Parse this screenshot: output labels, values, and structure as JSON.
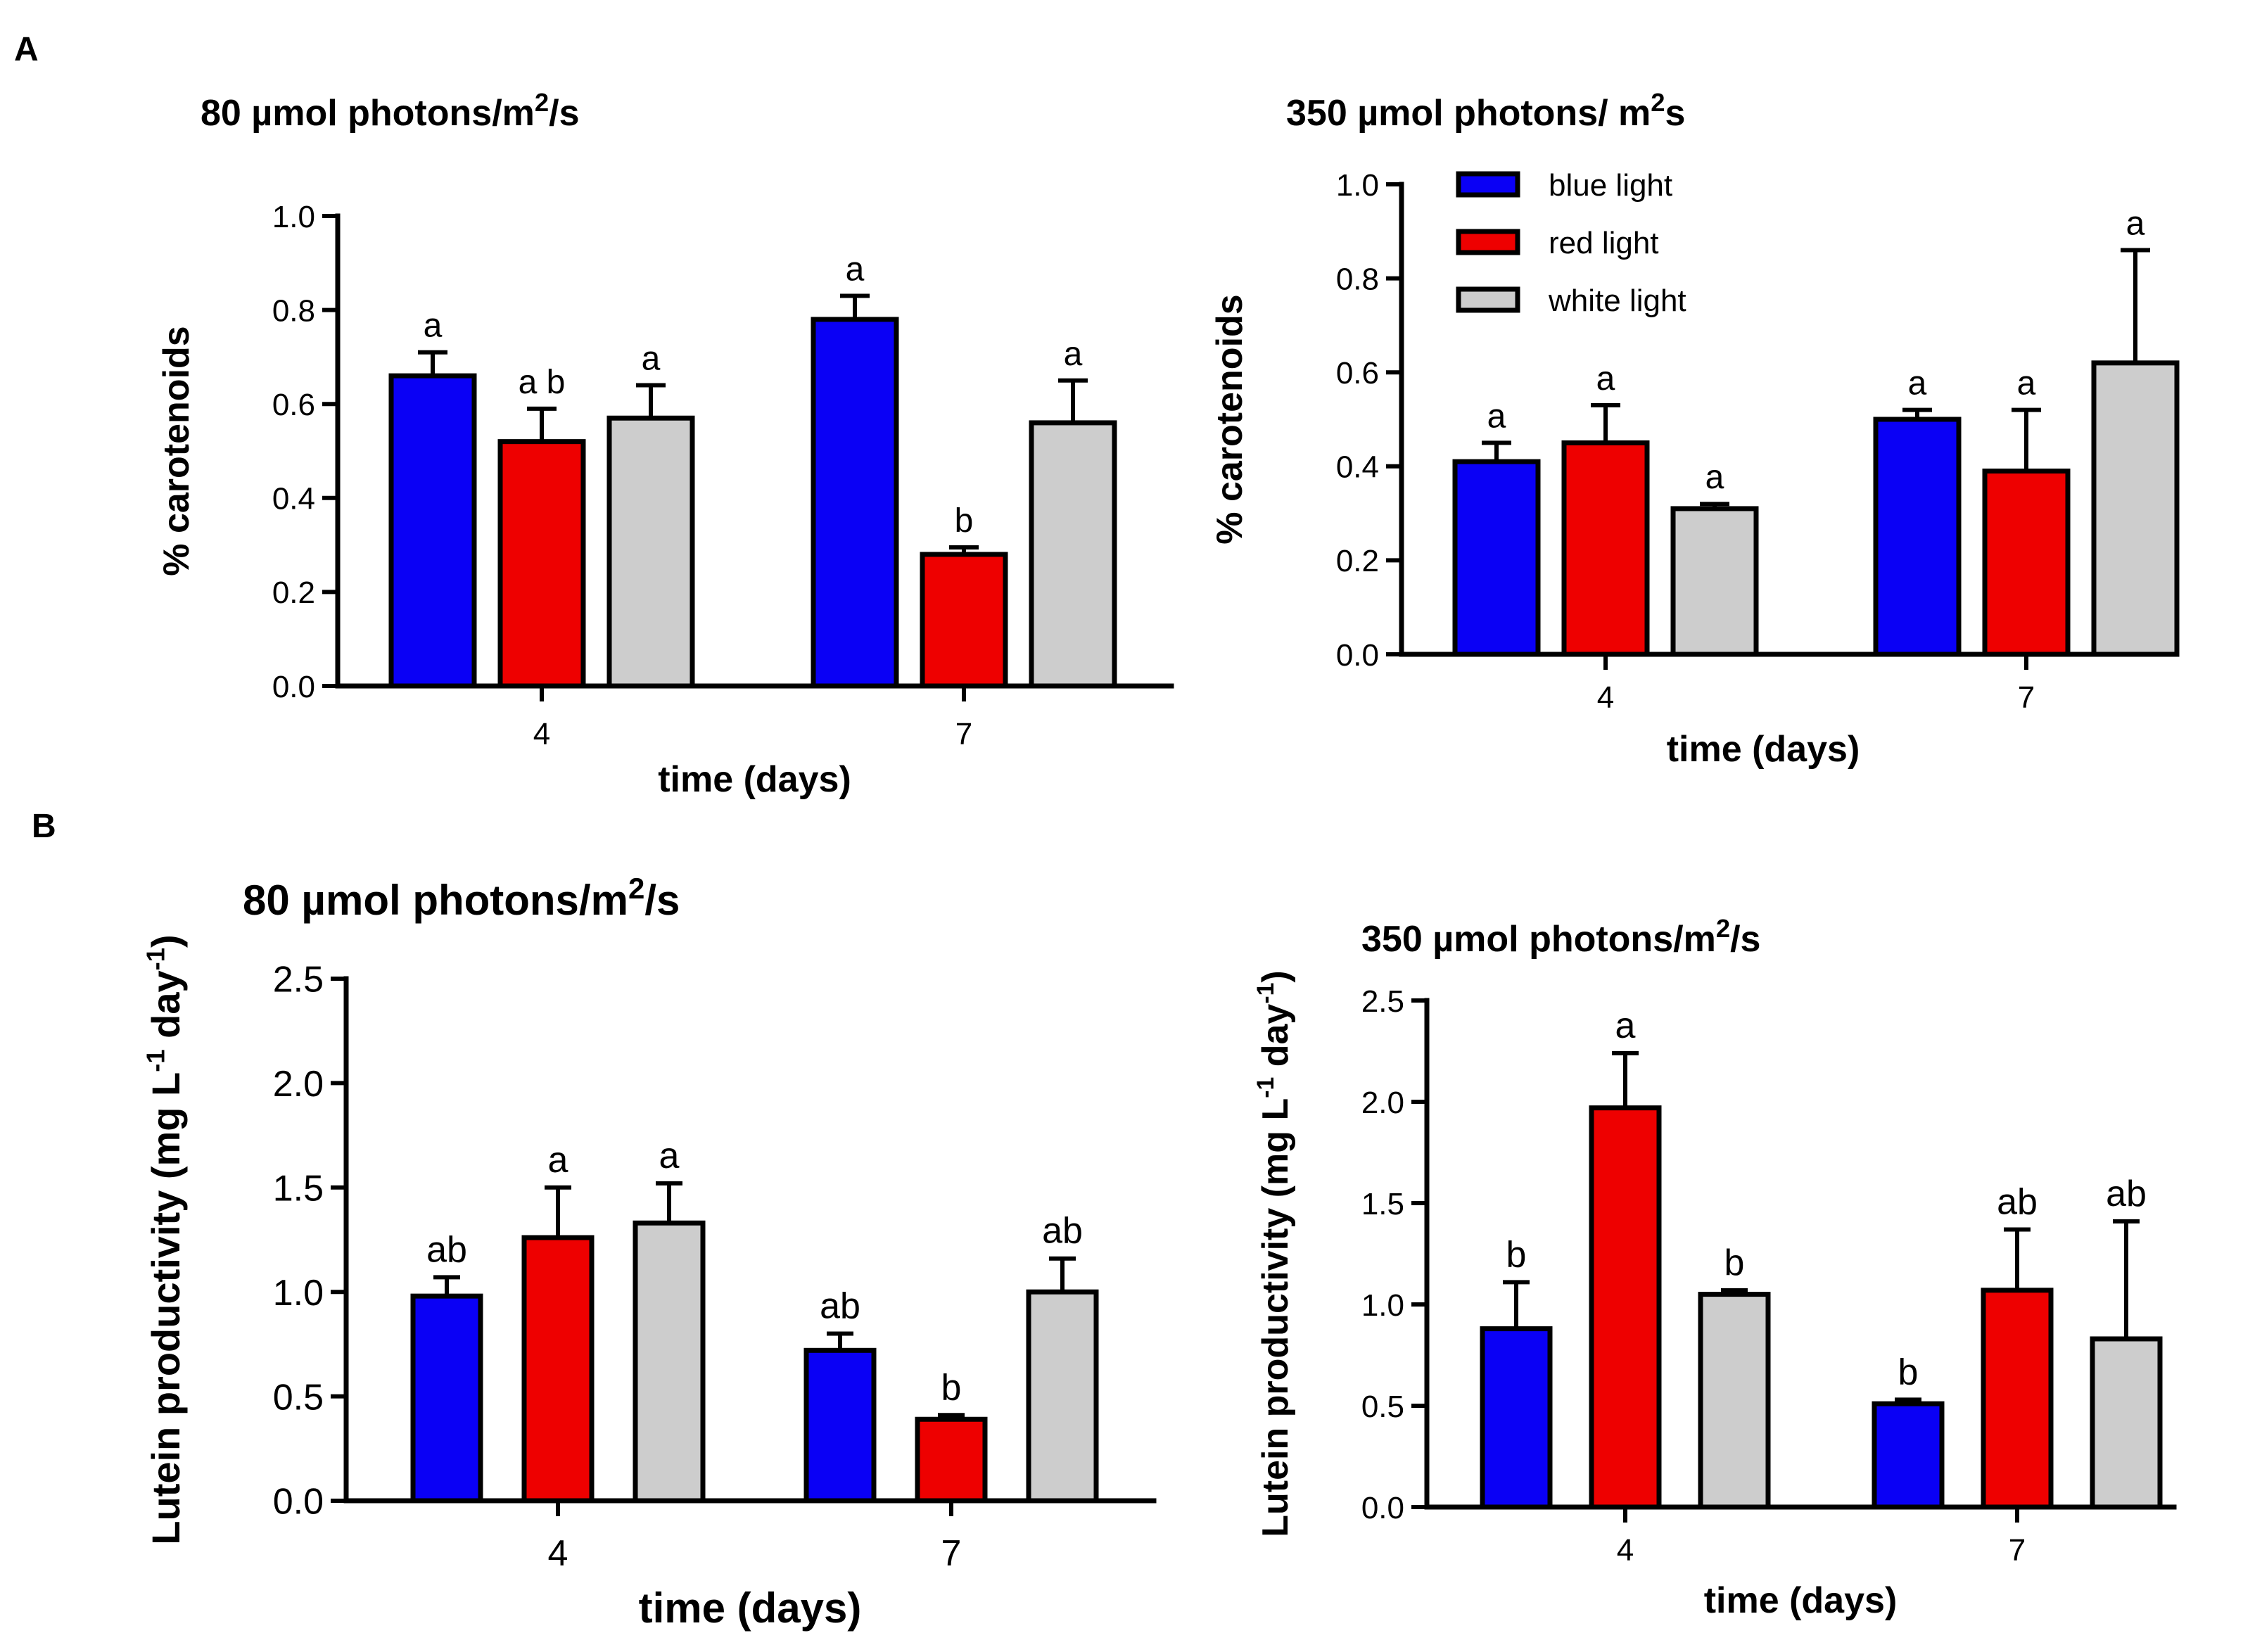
{
  "panels": [
    {
      "letter": "A"
    },
    {
      "letter": "B"
    }
  ],
  "colors": {
    "blue": "#0a00f5",
    "red": "#ee0000",
    "white": "#cdcdcd",
    "stroke": "#000000"
  },
  "legend": {
    "position": "top-left",
    "items": [
      {
        "label": "blue light",
        "color": "#0a00f5"
      },
      {
        "label": "red light",
        "color": "#ee0000"
      },
      {
        "label": "white light",
        "color": "#cdcdcd"
      }
    ]
  },
  "chart_data": [
    {
      "id": "A-80",
      "type": "bar",
      "title": "80 µmol photons/m",
      "title_sup": "2",
      "title_tail": "/s",
      "xlabel": "time (days)",
      "ylabel": "% carotenoids",
      "ylim": [
        0,
        1.0
      ],
      "yticks": [
        "0.0",
        "0.2",
        "0.4",
        "0.6",
        "0.8",
        "1.0"
      ],
      "categories": [
        "4",
        "7"
      ],
      "series": [
        {
          "name": "blue light",
          "values": [
            0.66,
            0.78
          ],
          "errors": [
            0.05,
            0.05
          ],
          "labels": [
            "a",
            "a"
          ]
        },
        {
          "name": "red light",
          "values": [
            0.52,
            0.28
          ],
          "errors": [
            0.07,
            0.015
          ],
          "labels": [
            "a b",
            "b"
          ]
        },
        {
          "name": "white light",
          "values": [
            0.57,
            0.56
          ],
          "errors": [
            0.07,
            0.09
          ],
          "labels": [
            "a",
            "a"
          ]
        }
      ]
    },
    {
      "id": "A-350",
      "type": "bar",
      "title": "350 µmol photons/ m",
      "title_sup": "2",
      "title_tail": "s",
      "xlabel": "time (days)",
      "ylabel": "% carotenoids",
      "ylim": [
        0,
        1.0
      ],
      "yticks": [
        "0.0",
        "0.2",
        "0.4",
        "0.6",
        "0.8",
        "1.0"
      ],
      "categories": [
        "4",
        "7"
      ],
      "series": [
        {
          "name": "blue light",
          "values": [
            0.41,
            0.5
          ],
          "errors": [
            0.04,
            0.02
          ],
          "labels": [
            "a",
            "a"
          ]
        },
        {
          "name": "red light",
          "values": [
            0.45,
            0.39
          ],
          "errors": [
            0.08,
            0.13
          ],
          "labels": [
            "a",
            "a"
          ]
        },
        {
          "name": "white light",
          "values": [
            0.31,
            0.62
          ],
          "errors": [
            0.01,
            0.24
          ],
          "labels": [
            "a",
            "a"
          ]
        }
      ]
    },
    {
      "id": "B-80",
      "type": "bar",
      "title": "80 µmol photons/m",
      "title_sup": "2",
      "title_tail": "/s",
      "xlabel": "time (days)",
      "ylabel": "Lutein productivity (mg L",
      "ylabel_sup1": "-1",
      "ylabel_mid": " day",
      "ylabel_sup2": "-1",
      "ylabel_tail": ")",
      "ylim": [
        0,
        2.5
      ],
      "yticks": [
        "0.0",
        "0.5",
        "1.0",
        "1.5",
        "2.0",
        "2.5"
      ],
      "categories": [
        "4",
        "7"
      ],
      "series": [
        {
          "name": "blue light",
          "values": [
            0.98,
            0.72
          ],
          "errors": [
            0.09,
            0.08
          ],
          "labels": [
            "ab",
            "ab"
          ]
        },
        {
          "name": "red light",
          "values": [
            1.26,
            0.39
          ],
          "errors": [
            0.24,
            0.02
          ],
          "labels": [
            "a",
            "b"
          ]
        },
        {
          "name": "white light",
          "values": [
            1.33,
            1.0
          ],
          "errors": [
            0.19,
            0.16
          ],
          "labels": [
            "a",
            "ab"
          ]
        }
      ]
    },
    {
      "id": "B-350",
      "type": "bar",
      "title": "350 µmol photons/m",
      "title_sup": "2",
      "title_tail": "/s",
      "xlabel": "time (days)",
      "ylabel": "Lutein productivity (mg L",
      "ylabel_sup1": "-1",
      "ylabel_mid": " day",
      "ylabel_sup2": "-1",
      "ylabel_tail": ")",
      "ylim": [
        0,
        2.5
      ],
      "yticks": [
        "0.0",
        "0.5",
        "1.0",
        "1.5",
        "2.0",
        "2.5"
      ],
      "categories": [
        "4",
        "7"
      ],
      "series": [
        {
          "name": "blue light",
          "values": [
            0.88,
            0.51
          ],
          "errors": [
            0.23,
            0.02
          ],
          "labels": [
            "b",
            "b"
          ]
        },
        {
          "name": "red light",
          "values": [
            1.97,
            1.07
          ],
          "errors": [
            0.27,
            0.3
          ],
          "labels": [
            "a",
            "ab"
          ]
        },
        {
          "name": "white light",
          "values": [
            1.05,
            0.83
          ],
          "errors": [
            0.02,
            0.58
          ],
          "labels": [
            "b",
            "ab"
          ]
        }
      ]
    }
  ]
}
